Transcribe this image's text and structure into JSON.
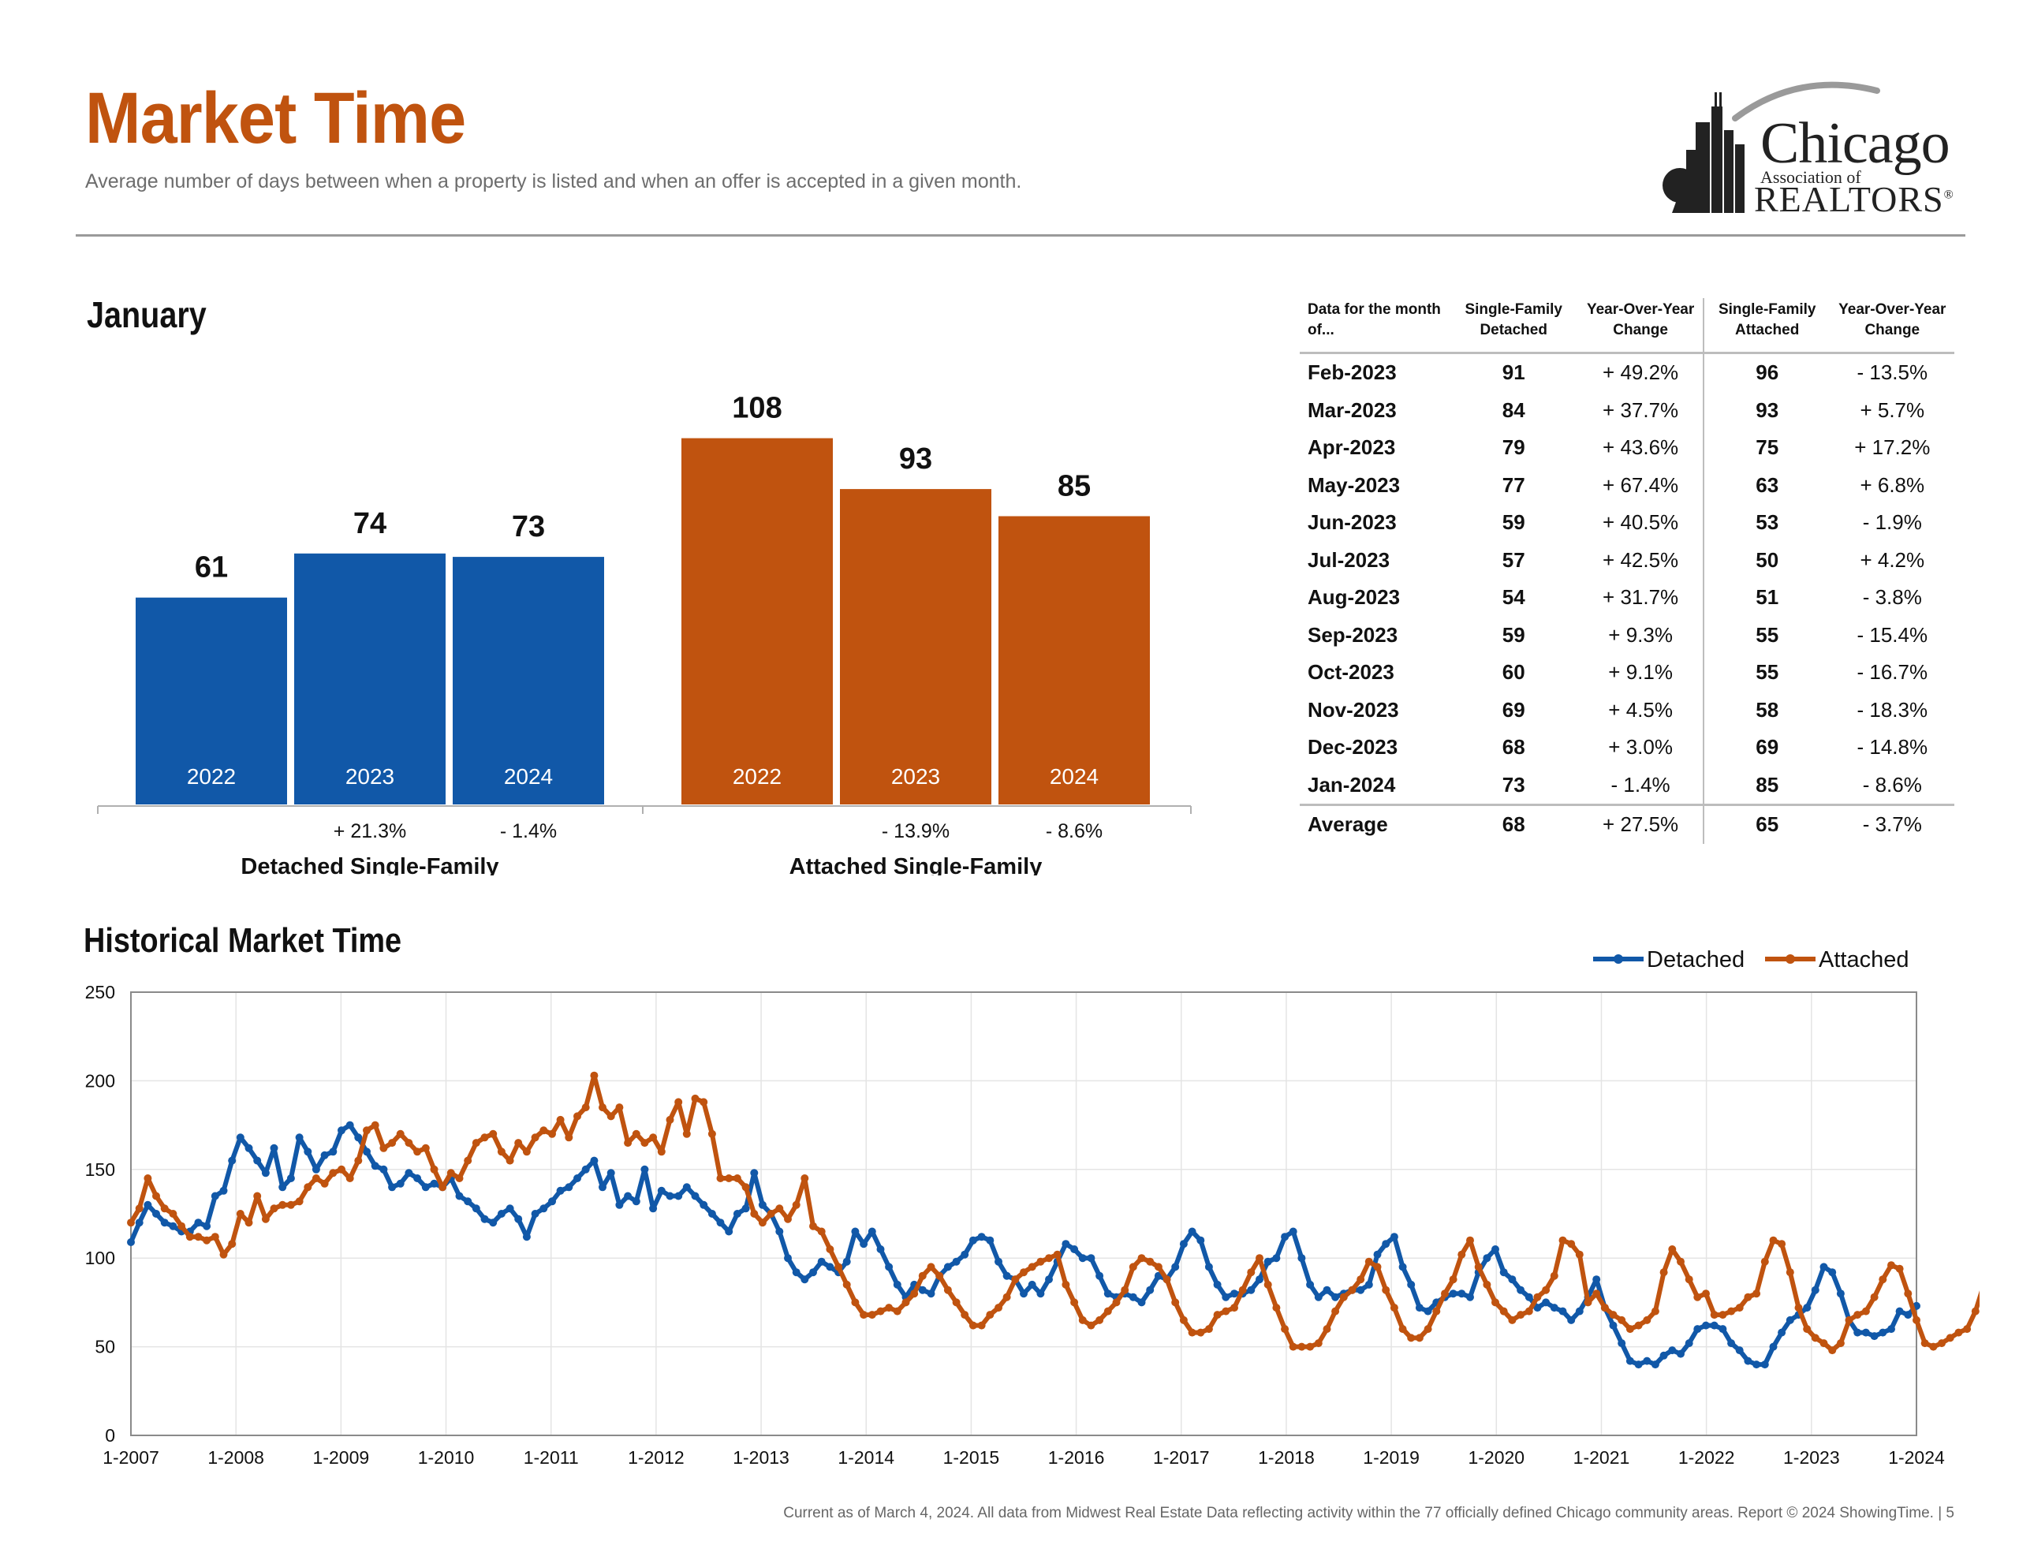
{
  "header": {
    "title": "Market Time",
    "subtitle": "Average number of days between when a property is listed and when an offer is accepted in a given month."
  },
  "logo": {
    "line1": "Chicago",
    "line2": "Association of",
    "line3": "REALTORS",
    "mark": "®"
  },
  "january": {
    "title": "January"
  },
  "historical": {
    "title": "Historical Market Time"
  },
  "table": {
    "headers": [
      "Data for the month of...",
      "Single-Family Detached",
      "Year-Over-Year Change",
      "Single-Family Attached",
      "Year-Over-Year Change"
    ],
    "rows": [
      {
        "month": "Feb-2023",
        "detached": "91",
        "det_change": "+ 49.2%",
        "attached": "96",
        "att_change": "- 13.5%"
      },
      {
        "month": "Mar-2023",
        "detached": "84",
        "det_change": "+ 37.7%",
        "attached": "93",
        "att_change": "+ 5.7%"
      },
      {
        "month": "Apr-2023",
        "detached": "79",
        "det_change": "+ 43.6%",
        "attached": "75",
        "att_change": "+ 17.2%"
      },
      {
        "month": "May-2023",
        "detached": "77",
        "det_change": "+ 67.4%",
        "attached": "63",
        "att_change": "+ 6.8%"
      },
      {
        "month": "Jun-2023",
        "detached": "59",
        "det_change": "+ 40.5%",
        "attached": "53",
        "att_change": "- 1.9%"
      },
      {
        "month": "Jul-2023",
        "detached": "57",
        "det_change": "+ 42.5%",
        "attached": "50",
        "att_change": "+ 4.2%"
      },
      {
        "month": "Aug-2023",
        "detached": "54",
        "det_change": "+ 31.7%",
        "attached": "51",
        "att_change": "- 3.8%"
      },
      {
        "month": "Sep-2023",
        "detached": "59",
        "det_change": "+ 9.3%",
        "attached": "55",
        "att_change": "- 15.4%"
      },
      {
        "month": "Oct-2023",
        "detached": "60",
        "det_change": "+ 9.1%",
        "attached": "55",
        "att_change": "- 16.7%"
      },
      {
        "month": "Nov-2023",
        "detached": "69",
        "det_change": "+ 4.5%",
        "attached": "58",
        "att_change": "- 18.3%"
      },
      {
        "month": "Dec-2023",
        "detached": "68",
        "det_change": "+ 3.0%",
        "attached": "69",
        "att_change": "- 14.8%"
      },
      {
        "month": "Jan-2024",
        "detached": "73",
        "det_change": "- 1.4%",
        "attached": "85",
        "att_change": "- 8.6%"
      }
    ],
    "average": {
      "month": "Average",
      "detached": "68",
      "det_change": "+ 27.5%",
      "attached": "65",
      "att_change": "- 3.7%"
    }
  },
  "colors": {
    "detached": "#1158a8",
    "attached": "#c0530f",
    "title": "#c0530f"
  },
  "footer": "Current as of March 4, 2024. All data from Midwest Real Estate Data reflecting activity within the 77 officially defined Chicago community areas. Report © 2024 ShowingTime. | 5",
  "chart_data": [
    {
      "type": "bar",
      "title": "January",
      "groups": [
        {
          "name": "Detached Single-Family",
          "color": "#1158a8",
          "categories": [
            "2022",
            "2023",
            "2024"
          ],
          "values": [
            61,
            74,
            73
          ],
          "changes": [
            "",
            "+ 21.3%",
            "- 1.4%"
          ]
        },
        {
          "name": "Attached Single-Family",
          "color": "#c0530f",
          "categories": [
            "2022",
            "2023",
            "2024"
          ],
          "values": [
            108,
            93,
            85
          ],
          "changes": [
            "",
            "- 13.9%",
            "- 8.6%"
          ]
        }
      ]
    },
    {
      "type": "line",
      "title": "Historical Market Time",
      "x_start": "1-2007",
      "x_end": "1-2024",
      "x_ticks": [
        "1-2007",
        "1-2008",
        "1-2009",
        "1-2010",
        "1-2011",
        "1-2012",
        "1-2013",
        "1-2014",
        "1-2015",
        "1-2016",
        "1-2017",
        "1-2018",
        "1-2019",
        "1-2020",
        "1-2021",
        "1-2022",
        "1-2023",
        "1-2024"
      ],
      "ylim": [
        0,
        250
      ],
      "y_ticks": [
        "0",
        "50",
        "100",
        "150",
        "200",
        "250"
      ],
      "grid": true,
      "legend": "top-right",
      "series": [
        {
          "name": "Detached",
          "color": "#1158a8",
          "values": [
            109,
            120,
            130,
            125,
            120,
            118,
            115,
            115,
            120,
            118,
            135,
            138,
            155,
            168,
            162,
            155,
            148,
            162,
            140,
            145,
            168,
            160,
            150,
            158,
            160,
            172,
            175,
            168,
            160,
            152,
            150,
            140,
            142,
            148,
            145,
            140,
            142,
            140,
            145,
            135,
            132,
            128,
            122,
            120,
            125,
            128,
            122,
            112,
            125,
            128,
            132,
            138,
            140,
            145,
            150,
            155,
            140,
            148,
            130,
            135,
            132,
            150,
            128,
            138,
            135,
            135,
            140,
            135,
            130,
            125,
            120,
            115,
            125,
            128,
            148,
            130,
            125,
            115,
            100,
            92,
            88,
            92,
            98,
            95,
            92,
            98,
            115,
            108,
            115,
            105,
            95,
            85,
            78,
            85,
            82,
            80,
            90,
            95,
            98,
            102,
            110,
            112,
            110,
            98,
            90,
            88,
            80,
            85,
            80,
            88,
            98,
            108,
            105,
            100,
            100,
            90,
            80,
            78,
            80,
            78,
            75,
            82,
            90,
            88,
            95,
            108,
            115,
            110,
            95,
            85,
            78,
            80,
            80,
            82,
            88,
            98,
            100,
            112,
            115,
            100,
            85,
            78,
            82,
            78,
            80,
            82,
            82,
            85,
            102,
            108,
            112,
            95,
            85,
            72,
            70,
            75,
            78,
            80,
            80,
            78,
            92,
            100,
            105,
            92,
            88,
            82,
            78,
            72,
            75,
            72,
            70,
            65,
            70,
            78,
            88,
            72,
            62,
            52,
            42,
            40,
            42,
            40,
            45,
            48,
            46,
            52,
            60,
            62,
            62,
            60,
            52,
            48,
            42,
            40,
            40,
            50,
            58,
            65,
            68,
            72,
            82,
            95,
            92,
            80,
            65,
            58,
            58,
            56,
            58,
            60,
            70,
            68,
            73
          ]
        },
        {
          "name": "Attached",
          "color": "#c0530f",
          "values": [
            120,
            128,
            145,
            135,
            128,
            125,
            118,
            112,
            112,
            110,
            112,
            102,
            108,
            125,
            120,
            135,
            122,
            128,
            130,
            130,
            132,
            140,
            145,
            142,
            148,
            150,
            145,
            155,
            172,
            175,
            162,
            165,
            170,
            165,
            160,
            162,
            150,
            140,
            148,
            145,
            155,
            165,
            168,
            170,
            160,
            155,
            165,
            160,
            168,
            172,
            170,
            178,
            168,
            180,
            185,
            203,
            185,
            180,
            185,
            165,
            170,
            165,
            168,
            160,
            178,
            188,
            170,
            190,
            188,
            170,
            145,
            145,
            145,
            140,
            125,
            120,
            125,
            128,
            122,
            130,
            145,
            118,
            115,
            105,
            95,
            85,
            75,
            68,
            68,
            70,
            72,
            70,
            75,
            80,
            90,
            95,
            90,
            82,
            75,
            68,
            62,
            62,
            68,
            72,
            78,
            88,
            92,
            95,
            98,
            100,
            102,
            85,
            75,
            65,
            62,
            65,
            70,
            75,
            82,
            95,
            100,
            98,
            95,
            88,
            75,
            65,
            58,
            58,
            60,
            68,
            70,
            72,
            82,
            92,
            100,
            85,
            72,
            60,
            50,
            50,
            50,
            52,
            60,
            70,
            78,
            82,
            88,
            98,
            95,
            82,
            72,
            60,
            55,
            55,
            60,
            70,
            80,
            88,
            102,
            110,
            95,
            85,
            75,
            70,
            65,
            68,
            70,
            78,
            82,
            90,
            110,
            108,
            102,
            75,
            80,
            72,
            68,
            65,
            60,
            62,
            65,
            70,
            92,
            105,
            98,
            88,
            78,
            80,
            68,
            68,
            70,
            72,
            78,
            80,
            98,
            110,
            108,
            92,
            72,
            60,
            55,
            52,
            48,
            52,
            65,
            68,
            70,
            78,
            88,
            96,
            94,
            80,
            65,
            52,
            50,
            52,
            55,
            58,
            60,
            70,
            85
          ]
        }
      ]
    }
  ]
}
